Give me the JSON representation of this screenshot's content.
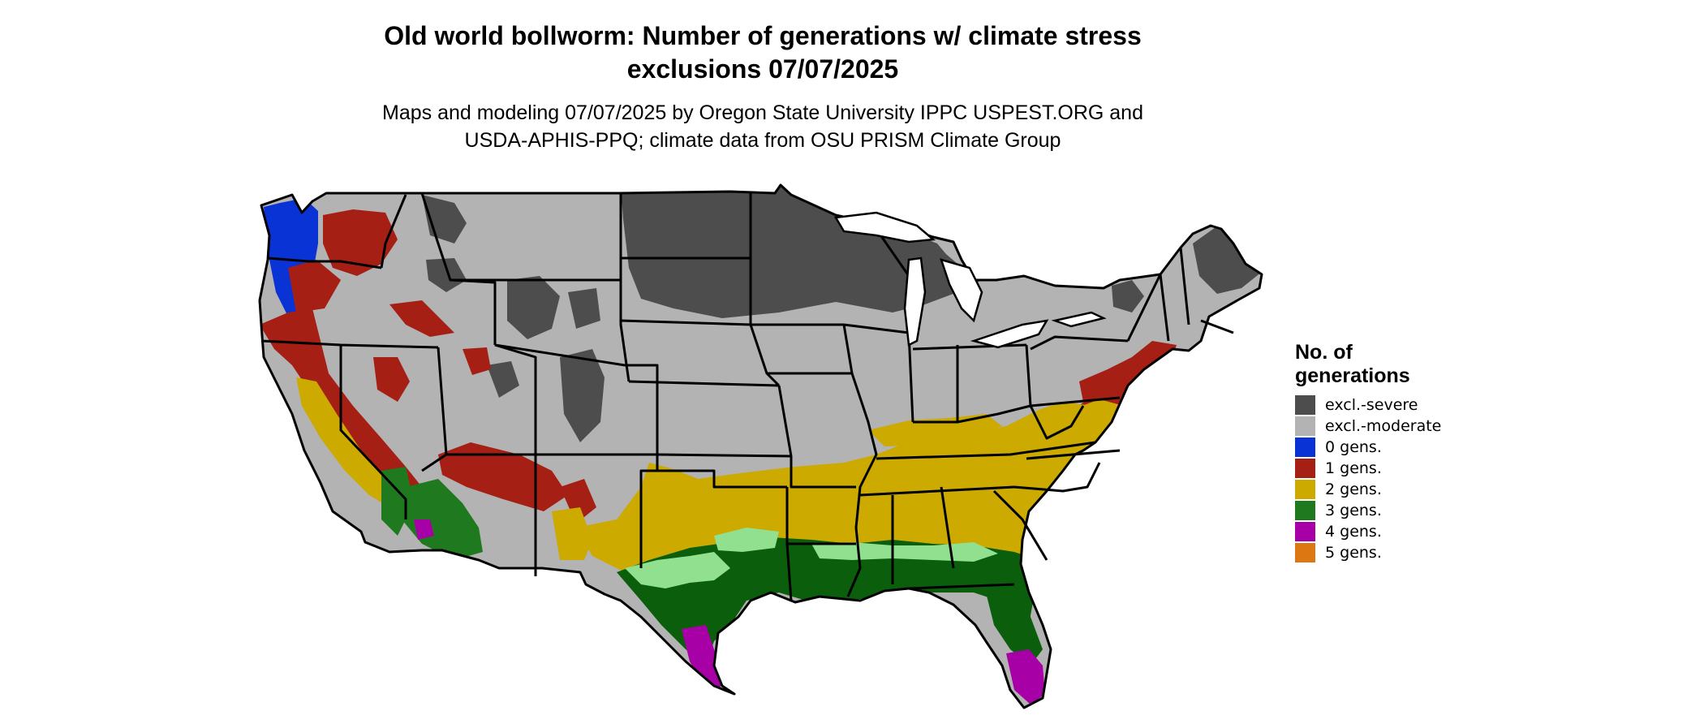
{
  "title": {
    "line1": "Old world bollworm: Number of generations w/ climate stress",
    "line2": "exclusions 07/07/2025"
  },
  "subtitle": {
    "line1": "Maps and modeling 07/07/2025 by Oregon State University IPPC USPEST.ORG and",
    "line2": "USDA-APHIS-PPQ; climate data from OSU PRISM Climate Group"
  },
  "legend": {
    "title_line1": "No. of",
    "title_line2": "generations",
    "items": [
      {
        "label": "excl.-severe",
        "color": "#4d4d4d"
      },
      {
        "label": "excl.-moderate",
        "color": "#b3b3b3"
      },
      {
        "label": "0 gens.",
        "color": "#0a33d6"
      },
      {
        "label": "1 gens.",
        "color": "#a51f14"
      },
      {
        "label": "2 gens.",
        "color": "#ccaa00"
      },
      {
        "label": "3 gens.",
        "color": "#1f7a1f"
      },
      {
        "label": "4 gens.",
        "color": "#a600a6"
      },
      {
        "label": "5 gens.",
        "color": "#dd7711"
      }
    ]
  },
  "map_colors": {
    "green_dark": "#0b5e0b",
    "green_light": "#90e090",
    "border": "#000000"
  }
}
